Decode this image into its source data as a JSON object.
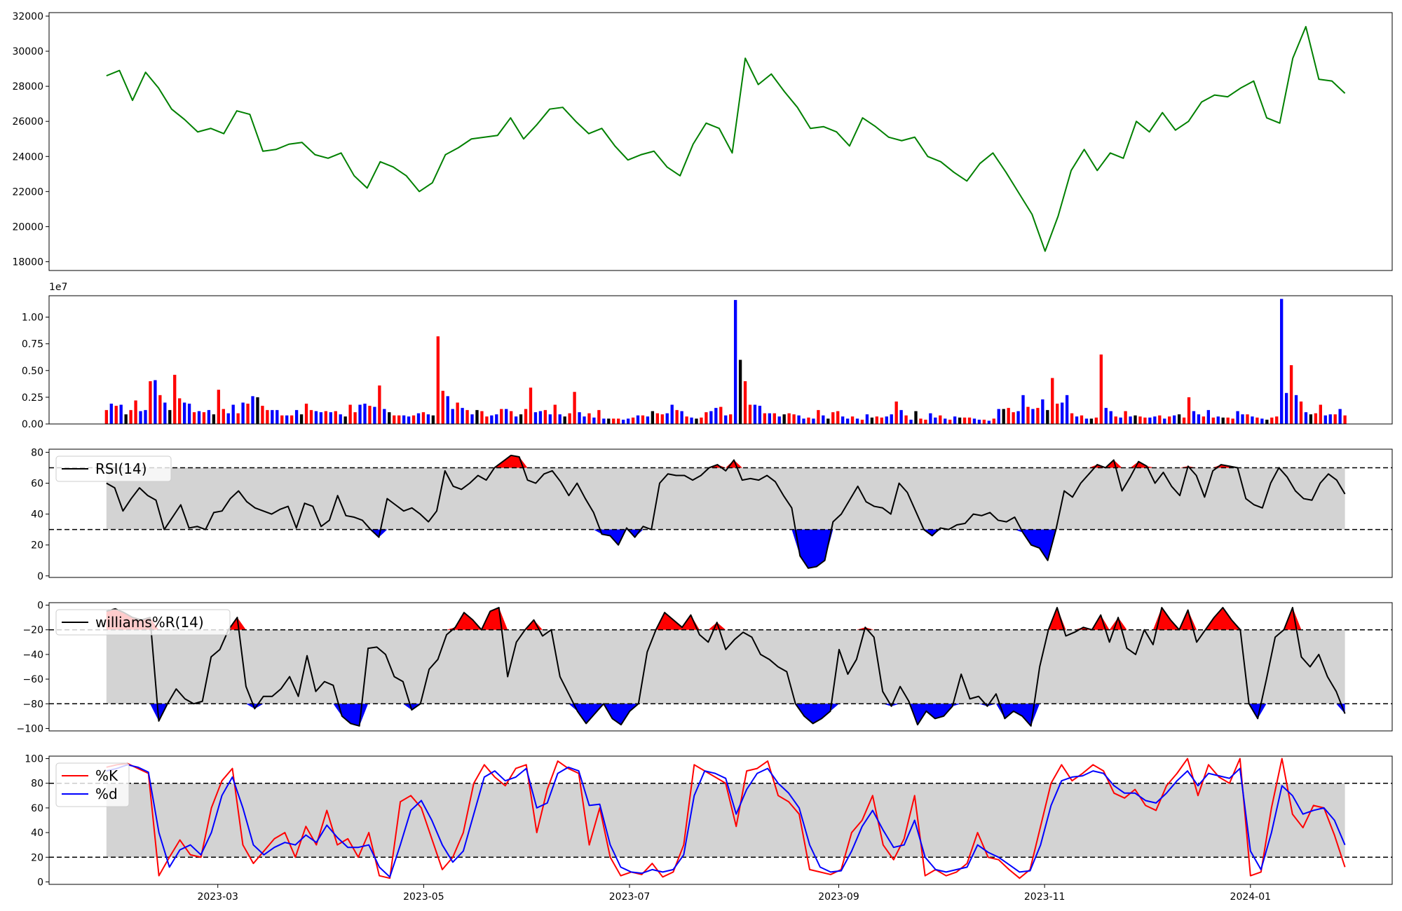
{
  "chart_data": [
    {
      "type": "line",
      "name_panel": "price",
      "color": "#008000",
      "ylim": [
        17500,
        32200
      ],
      "yticks": [
        18000,
        20000,
        22000,
        24000,
        26000,
        28000,
        30000,
        32000
      ],
      "ytick_labels": [
        "18000",
        "20000",
        "22000",
        "24000",
        "26000",
        "28000",
        "30000",
        "32000"
      ],
      "x": [
        "2023-01-27",
        "2023-01-28",
        "2023-02-01",
        "2023-02-03",
        "2023-02-07",
        "2023-02-09",
        "2023-02-13",
        "2023-02-17",
        "2023-02-21",
        "2023-02-23",
        "2023-02-27",
        "2023-03-02",
        "2023-03-06",
        "2023-03-10",
        "2023-03-14",
        "2023-03-18",
        "2023-03-22",
        "2023-03-26",
        "2023-03-30",
        "2023-04-03",
        "2023-04-07",
        "2023-04-11",
        "2023-04-15",
        "2023-04-19",
        "2023-04-23",
        "2023-04-27",
        "2023-05-01",
        "2023-05-05",
        "2023-05-09",
        "2023-05-13",
        "2023-05-17",
        "2023-05-21",
        "2023-05-25",
        "2023-05-29",
        "2023-06-02",
        "2023-06-06",
        "2023-06-10",
        "2023-06-14",
        "2023-06-18",
        "2023-06-22",
        "2023-06-26",
        "2023-06-30",
        "2023-07-04",
        "2023-07-08",
        "2023-07-12",
        "2023-07-16",
        "2023-07-20",
        "2023-07-24",
        "2023-07-28",
        "2023-08-01",
        "2023-08-03",
        "2023-08-07",
        "2023-08-11",
        "2023-08-15",
        "2023-08-19",
        "2023-08-23",
        "2023-08-27",
        "2023-08-31",
        "2023-09-04",
        "2023-09-08",
        "2023-09-12",
        "2023-09-16",
        "2023-09-20",
        "2023-09-24",
        "2023-09-28",
        "2023-10-02",
        "2023-10-06",
        "2023-10-10",
        "2023-10-14",
        "2023-10-18",
        "2023-10-22",
        "2023-10-26",
        "2023-10-30",
        "2023-11-03",
        "2023-11-07",
        "2023-11-11",
        "2023-11-15",
        "2023-11-19",
        "2023-11-23",
        "2023-11-27",
        "2023-12-01",
        "2023-12-05",
        "2023-12-09",
        "2023-12-13",
        "2023-12-17",
        "2023-12-21",
        "2023-12-25",
        "2023-12-29",
        "2024-01-02",
        "2024-01-06",
        "2024-01-10",
        "2024-01-13",
        "2024-01-17",
        "2024-01-21",
        "2024-01-25",
        "2024-01-29"
      ],
      "values": [
        28600,
        28900,
        27200,
        28800,
        27900,
        26700,
        26100,
        25400,
        25600,
        25300,
        26600,
        26400,
        24300,
        24400,
        24700,
        24800,
        24100,
        23900,
        24200,
        22900,
        22200,
        23700,
        23400,
        22900,
        22000,
        22500,
        24100,
        24500,
        25000,
        25100,
        25200,
        26200,
        25000,
        25800,
        26700,
        26800,
        26000,
        25300,
        25600,
        24600,
        23800,
        24100,
        24300,
        23400,
        22900,
        24700,
        25900,
        25600,
        24200,
        29600,
        28100,
        28700,
        27700,
        26800,
        25600,
        25700,
        25400,
        24600,
        26200,
        25700,
        25100,
        24900,
        25100,
        24000,
        23700,
        23100,
        22600,
        23600,
        24200,
        23100,
        21900,
        20700,
        18600,
        20600,
        23200,
        24400,
        23200,
        24200,
        23900,
        26000,
        25400,
        26500,
        25500,
        26000,
        27100,
        27500,
        27400,
        27900,
        28300,
        26200,
        25900,
        29600,
        31400,
        28400,
        28300,
        27600
      ]
    },
    {
      "type": "bar",
      "name_panel": "volume",
      "exponent_label": "1e7",
      "ylim": [
        0,
        1.2
      ],
      "yticks": [
        0,
        0.25,
        0.5,
        0.75,
        1.0
      ],
      "ytick_labels": [
        "0.00",
        "0.25",
        "0.50",
        "0.75",
        "1.00"
      ],
      "values": [
        0.13,
        0.19,
        0.17,
        0.18,
        0.09,
        0.13,
        0.22,
        0.12,
        0.13,
        0.4,
        0.41,
        0.27,
        0.2,
        0.13,
        0.46,
        0.24,
        0.2,
        0.19,
        0.11,
        0.12,
        0.11,
        0.13,
        0.09,
        0.32,
        0.14,
        0.1,
        0.18,
        0.1,
        0.2,
        0.19,
        0.26,
        0.25,
        0.17,
        0.13,
        0.13,
        0.13,
        0.08,
        0.08,
        0.08,
        0.13,
        0.09,
        0.19,
        0.13,
        0.12,
        0.11,
        0.12,
        0.11,
        0.12,
        0.09,
        0.07,
        0.18,
        0.11,
        0.18,
        0.19,
        0.17,
        0.16,
        0.36,
        0.14,
        0.11,
        0.08,
        0.08,
        0.08,
        0.07,
        0.08,
        0.1,
        0.11,
        0.09,
        0.08,
        0.82,
        0.31,
        0.26,
        0.14,
        0.2,
        0.15,
        0.13,
        0.09,
        0.13,
        0.12,
        0.07,
        0.08,
        0.09,
        0.14,
        0.14,
        0.12,
        0.07,
        0.09,
        0.14,
        0.34,
        0.11,
        0.12,
        0.13,
        0.09,
        0.18,
        0.09,
        0.07,
        0.1,
        0.3,
        0.11,
        0.07,
        0.1,
        0.06,
        0.13,
        0.05,
        0.05,
        0.05,
        0.05,
        0.04,
        0.05,
        0.06,
        0.08,
        0.08,
        0.07,
        0.12,
        0.1,
        0.09,
        0.1,
        0.18,
        0.13,
        0.12,
        0.07,
        0.06,
        0.05,
        0.06,
        0.11,
        0.12,
        0.15,
        0.16,
        0.08,
        0.09,
        1.16,
        0.6,
        0.4,
        0.18,
        0.18,
        0.17,
        0.1,
        0.1,
        0.1,
        0.07,
        0.09,
        0.1,
        0.09,
        0.08,
        0.05,
        0.06,
        0.05,
        0.13,
        0.08,
        0.05,
        0.11,
        0.12,
        0.07,
        0.05,
        0.07,
        0.05,
        0.04,
        0.09,
        0.06,
        0.07,
        0.06,
        0.07,
        0.09,
        0.21,
        0.13,
        0.08,
        0.04,
        0.12,
        0.05,
        0.04,
        0.1,
        0.06,
        0.08,
        0.05,
        0.04,
        0.07,
        0.06,
        0.06,
        0.06,
        0.05,
        0.04,
        0.04,
        0.03,
        0.05,
        0.14,
        0.14,
        0.15,
        0.11,
        0.12,
        0.27,
        0.16,
        0.14,
        0.15,
        0.23,
        0.13,
        0.43,
        0.19,
        0.2,
        0.27,
        0.1,
        0.07,
        0.08,
        0.05,
        0.05,
        0.06,
        0.65,
        0.15,
        0.12,
        0.07,
        0.06,
        0.12,
        0.07,
        0.08,
        0.07,
        0.06,
        0.06,
        0.07,
        0.08,
        0.05,
        0.07,
        0.08,
        0.09,
        0.06,
        0.25,
        0.12,
        0.09,
        0.07,
        0.13,
        0.06,
        0.07,
        0.06,
        0.06,
        0.05,
        0.12,
        0.09,
        0.09,
        0.07,
        0.06,
        0.05,
        0.04,
        0.06,
        0.07,
        1.17,
        0.29,
        0.55,
        0.27,
        0.21,
        0.11,
        0.09,
        0.1,
        0.18,
        0.08,
        0.09,
        0.09,
        0.14,
        0.08
      ],
      "colors_cycle": [
        "#ff0000",
        "#0000ff",
        "#ff0000",
        "#0000ff",
        "#0000ff",
        "#000000"
      ]
    },
    {
      "type": "line",
      "name_panel": "rsi",
      "legend": [
        "RSI(14)"
      ],
      "ylim": [
        -1,
        82
      ],
      "yticks": [
        0,
        20,
        40,
        60,
        80
      ],
      "ytick_labels": [
        "0",
        "20",
        "40",
        "60",
        "80"
      ],
      "bands": [
        30,
        70
      ],
      "values": [
        60,
        57,
        42,
        50,
        57,
        52,
        49,
        30,
        38,
        46,
        31,
        32,
        30,
        41,
        42,
        50,
        55,
        48,
        44,
        42,
        40,
        43,
        45,
        31,
        47,
        45,
        32,
        36,
        52,
        39,
        38,
        36,
        30,
        25,
        50,
        46,
        42,
        44,
        40,
        35,
        42,
        68,
        58,
        56,
        60,
        65,
        62,
        70,
        74,
        78,
        77,
        62,
        60,
        66,
        68,
        61,
        52,
        60,
        50,
        41,
        27,
        26,
        20,
        31,
        25,
        32,
        30,
        60,
        66,
        65,
        65,
        62,
        65,
        70,
        72,
        68,
        75,
        62,
        63,
        62,
        65,
        61,
        52,
        44,
        13,
        5,
        6,
        10,
        35,
        40,
        49,
        58,
        48,
        45,
        44,
        40,
        60,
        54,
        42,
        30,
        26,
        31,
        30,
        33,
        34,
        40,
        39,
        41,
        36,
        35,
        38,
        28,
        20,
        18,
        10,
        30,
        55,
        51,
        60,
        66,
        72,
        70,
        75,
        55,
        64,
        74,
        71,
        60,
        67,
        58,
        52,
        71,
        65,
        51,
        68,
        72,
        71,
        70,
        50,
        46,
        44,
        60,
        70,
        64,
        55,
        50,
        49,
        60,
        66,
        62,
        53
      ]
    },
    {
      "type": "line",
      "name_panel": "williams",
      "legend": [
        "williams%R(14)"
      ],
      "ylim": [
        -102,
        2
      ],
      "yticks": [
        -100,
        -80,
        -60,
        -40,
        -20,
        0
      ],
      "ytick_labels": [
        "−100",
        "−80",
        "−60",
        "−40",
        "−20",
        "0"
      ],
      "bands": [
        -80,
        -20
      ],
      "values": [
        -5,
        -3,
        -6,
        -10,
        -12,
        -10,
        -94,
        -80,
        -68,
        -76,
        -80,
        -78,
        -42,
        -36,
        -20,
        -10,
        -66,
        -84,
        -74,
        -74,
        -68,
        -58,
        -74,
        -41,
        -70,
        -62,
        -65,
        -90,
        -96,
        -98,
        -35,
        -34,
        -40,
        -58,
        -62,
        -85,
        -80,
        -52,
        -44,
        -24,
        -18,
        -6,
        -12,
        -20,
        -5,
        -2,
        -58,
        -30,
        -20,
        -12,
        -25,
        -20,
        -58,
        -72,
        -86,
        -96,
        -88,
        -80,
        -92,
        -97,
        -86,
        -80,
        -38,
        -20,
        -6,
        -12,
        -18,
        -8,
        -24,
        -30,
        -14,
        -36,
        -28,
        -22,
        -26,
        -40,
        -44,
        -50,
        -54,
        -80,
        -90,
        -96,
        -92,
        -86,
        -36,
        -56,
        -44,
        -18,
        -26,
        -70,
        -82,
        -66,
        -78,
        -97,
        -86,
        -92,
        -90,
        -82,
        -56,
        -76,
        -74,
        -82,
        -72,
        -92,
        -86,
        -90,
        -98,
        -50,
        -20,
        -2,
        -25,
        -22,
        -18,
        -20,
        -8,
        -30,
        -10,
        -35,
        -40,
        -20,
        -32,
        -2,
        -12,
        -20,
        -4,
        -30,
        -20,
        -10,
        -2,
        -12,
        -20,
        -80,
        -92,
        -60,
        -26,
        -20,
        -2,
        -42,
        -50,
        -40,
        -58,
        -70,
        -88
      ]
    },
    {
      "type": "line",
      "name_panel": "stochastic",
      "legend": [
        "%K",
        "%d"
      ],
      "ylim": [
        -2,
        102
      ],
      "yticks": [
        0,
        20,
        40,
        60,
        80,
        100
      ],
      "ytick_labels": [
        "0",
        "20",
        "40",
        "60",
        "80",
        "100"
      ],
      "bands": [
        20,
        80
      ],
      "series": [
        {
          "name": "%K",
          "color": "#ff0000",
          "values": [
            93,
            95,
            96,
            92,
            88,
            5,
            20,
            34,
            22,
            20,
            60,
            82,
            92,
            30,
            15,
            25,
            35,
            40,
            20,
            45,
            30,
            58,
            30,
            35,
            20,
            40,
            5,
            3,
            65,
            70,
            60,
            35,
            10,
            20,
            40,
            80,
            95,
            85,
            78,
            92,
            95,
            40,
            75,
            98,
            92,
            88,
            30,
            60,
            20,
            5,
            8,
            6,
            15,
            4,
            8,
            30,
            95,
            90,
            85,
            80,
            45,
            90,
            92,
            98,
            70,
            65,
            55,
            10,
            8,
            6,
            10,
            40,
            50,
            70,
            30,
            18,
            35,
            70,
            5,
            10,
            5,
            8,
            15,
            40,
            20,
            18,
            10,
            3,
            10,
            45,
            80,
            95,
            82,
            88,
            95,
            90,
            72,
            68,
            75,
            62,
            58,
            78,
            88,
            100,
            70,
            95,
            85,
            80,
            100,
            5,
            8,
            60,
            100,
            55,
            44,
            62,
            60,
            38,
            12
          ]
        },
        {
          "name": "%d",
          "color": "#0000ff",
          "values": [
            90,
            92,
            95,
            93,
            89,
            40,
            12,
            26,
            30,
            22,
            40,
            70,
            85,
            60,
            30,
            22,
            28,
            32,
            30,
            38,
            32,
            46,
            36,
            28,
            28,
            30,
            12,
            4,
            30,
            58,
            66,
            50,
            30,
            16,
            25,
            55,
            85,
            90,
            82,
            85,
            92,
            60,
            64,
            88,
            93,
            90,
            62,
            63,
            30,
            12,
            8,
            7,
            10,
            8,
            10,
            22,
            70,
            90,
            88,
            84,
            55,
            75,
            88,
            92,
            80,
            72,
            60,
            30,
            12,
            8,
            9,
            25,
            45,
            58,
            42,
            28,
            30,
            50,
            20,
            10,
            8,
            10,
            12,
            30,
            24,
            20,
            14,
            8,
            9,
            30,
            62,
            82,
            85,
            86,
            90,
            88,
            78,
            72,
            72,
            66,
            64,
            72,
            82,
            90,
            78,
            88,
            86,
            84,
            92,
            25,
            10,
            40,
            78,
            70,
            55,
            58,
            60,
            50,
            30
          ]
        }
      ]
    }
  ],
  "x_axis": {
    "ticks": [
      "2023-03-01",
      "2023-05-01",
      "2023-07-01",
      "2023-09-01",
      "2023-11-01",
      "2024-01-01"
    ],
    "tick_labels": [
      "2023-03",
      "2023-05",
      "2023-07",
      "2023-09",
      "2023-11",
      "2024-01"
    ],
    "domain_start": "2023-01-10",
    "domain_end": "2024-02-12",
    "data_start": "2023-01-27",
    "data_end": "2024-01-29"
  }
}
